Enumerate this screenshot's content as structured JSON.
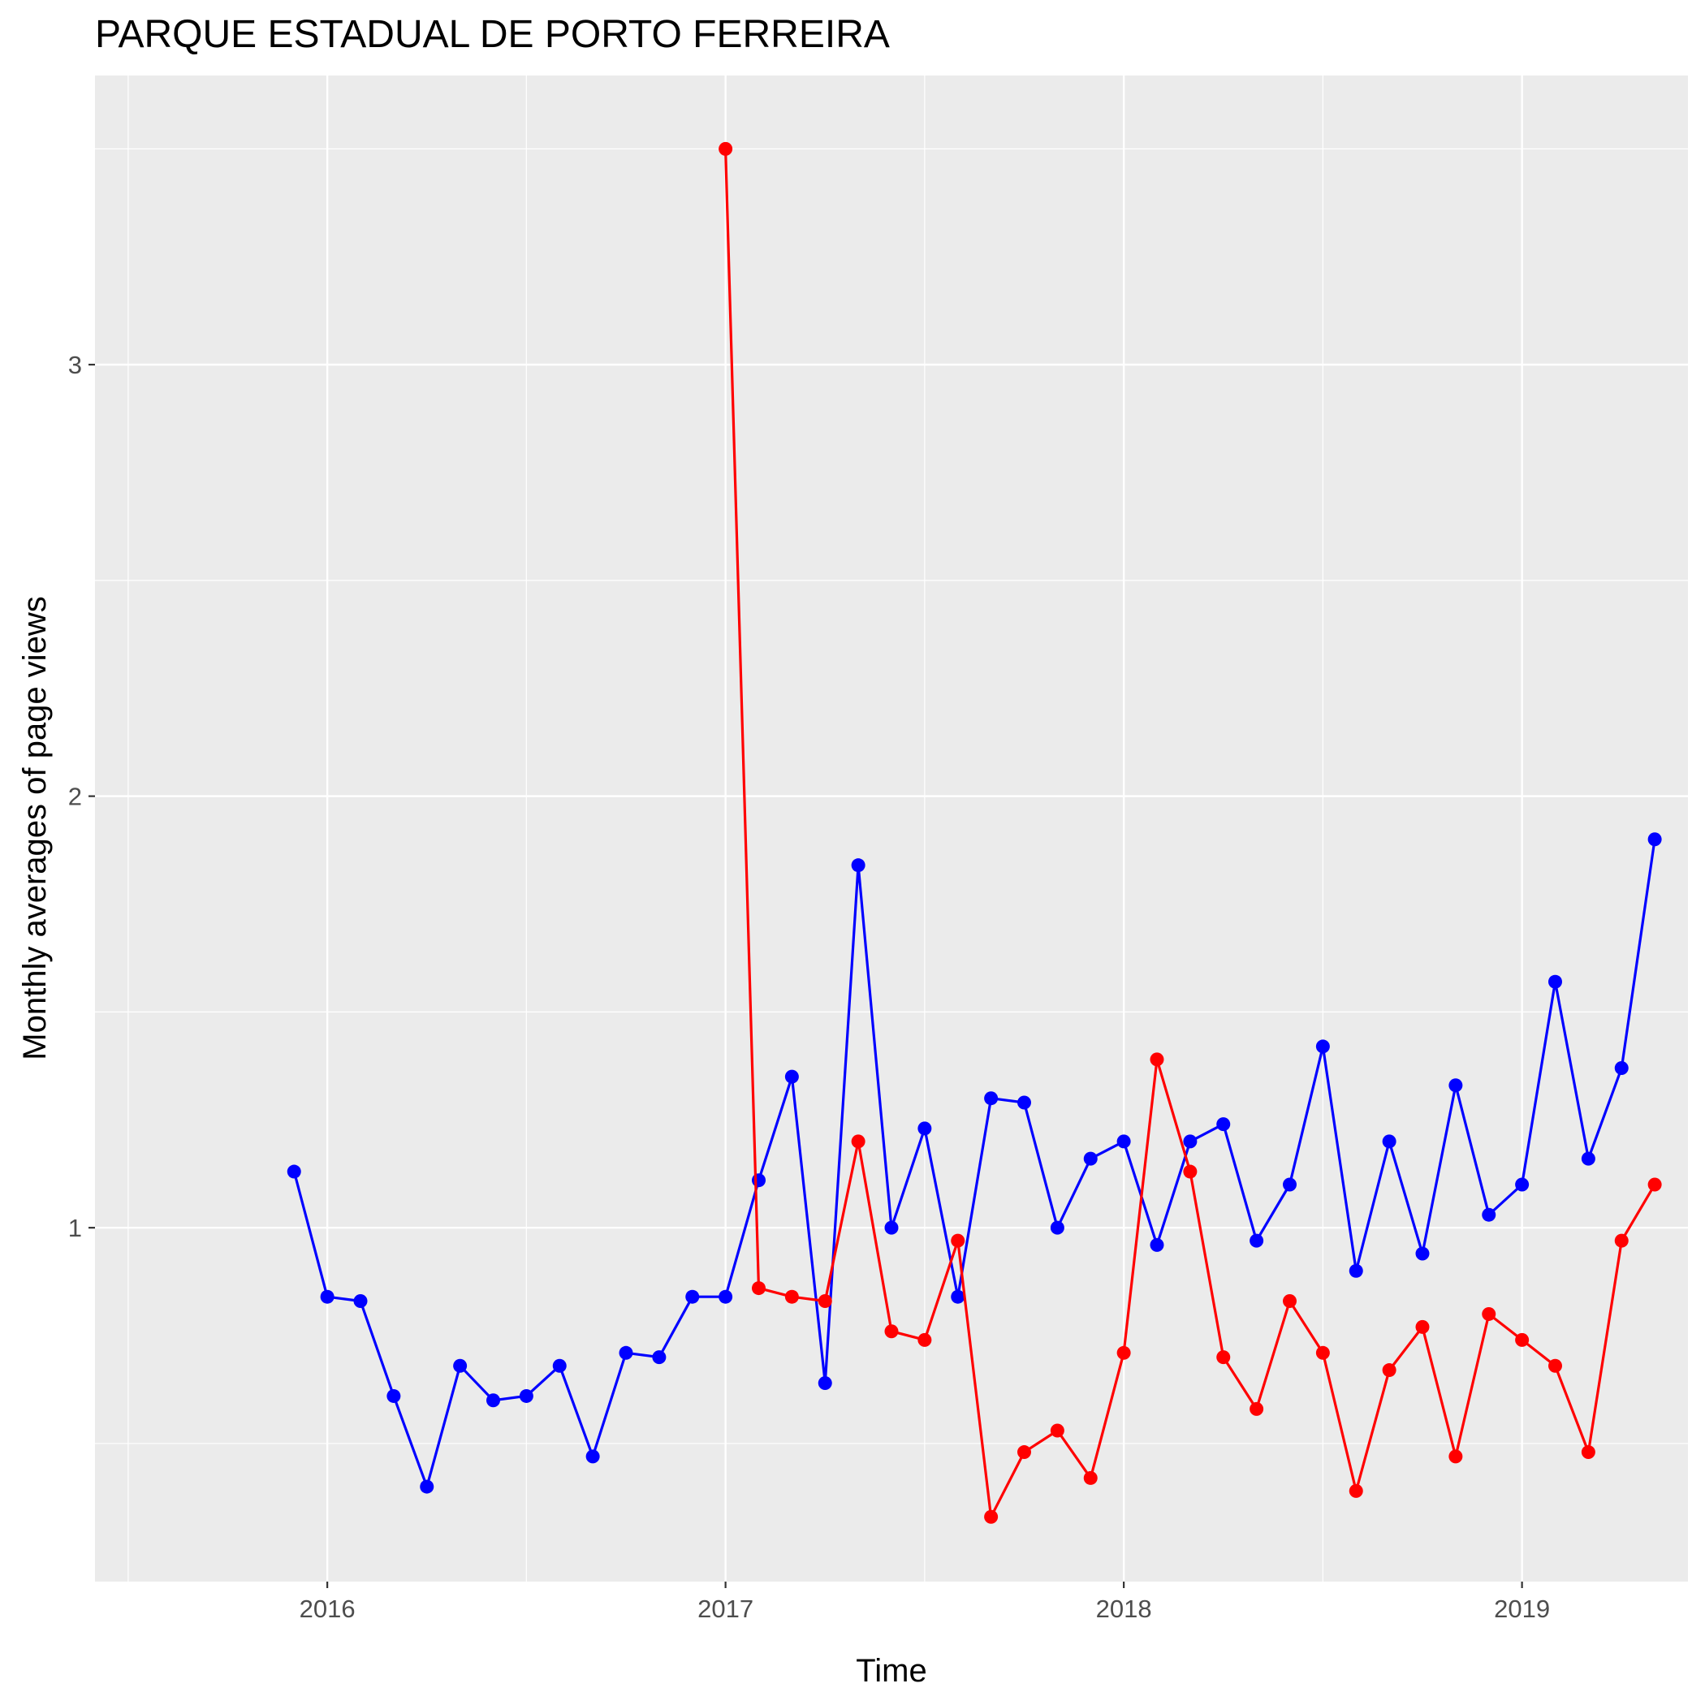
{
  "chart_data": {
    "type": "line",
    "title": "PARQUE ESTADUAL DE PORTO FERREIRA",
    "xlabel": "Time",
    "ylabel": "Monthly averages of page views",
    "x_ticks": [
      "2016",
      "2017",
      "2018",
      "2019"
    ],
    "y_ticks": [
      "1",
      "2",
      "3"
    ],
    "xlim": [
      "2015-06",
      "2019-06"
    ],
    "ylim": [
      0.18,
      3.67
    ],
    "grid": true,
    "series": [
      {
        "color": "#0000ff",
        "points": [
          [
            "2015-12",
            1.13
          ],
          [
            "2016-01",
            0.84
          ],
          [
            "2016-02",
            0.83
          ],
          [
            "2016-03",
            0.61
          ],
          [
            "2016-04",
            0.4
          ],
          [
            "2016-05",
            0.68
          ],
          [
            "2016-06",
            0.6
          ],
          [
            "2016-07",
            0.61
          ],
          [
            "2016-08",
            0.68
          ],
          [
            "2016-09",
            0.47
          ],
          [
            "2016-10",
            0.71
          ],
          [
            "2016-11",
            0.7
          ],
          [
            "2016-12",
            0.84
          ],
          [
            "2017-01",
            0.84
          ],
          [
            "2017-02",
            1.11
          ],
          [
            "2017-03",
            1.35
          ],
          [
            "2017-04",
            0.64
          ],
          [
            "2017-05",
            1.84
          ],
          [
            "2017-06",
            1.0
          ],
          [
            "2017-07",
            1.23
          ],
          [
            "2017-08",
            0.84
          ],
          [
            "2017-09",
            1.3
          ],
          [
            "2017-10",
            1.29
          ],
          [
            "2017-11",
            1.0
          ],
          [
            "2017-12",
            1.16
          ],
          [
            "2018-01",
            1.2
          ],
          [
            "2018-02",
            0.96
          ],
          [
            "2018-03",
            1.2
          ],
          [
            "2018-04",
            1.24
          ],
          [
            "2018-05",
            0.97
          ],
          [
            "2018-06",
            1.1
          ],
          [
            "2018-07",
            1.42
          ],
          [
            "2018-08",
            0.9
          ],
          [
            "2018-09",
            1.2
          ],
          [
            "2018-10",
            0.94
          ],
          [
            "2018-11",
            1.33
          ],
          [
            "2018-12",
            1.03
          ],
          [
            "2019-01",
            1.1
          ],
          [
            "2019-02",
            1.57
          ],
          [
            "2019-03",
            1.16
          ],
          [
            "2019-04",
            1.37
          ],
          [
            "2019-05",
            1.9
          ]
        ]
      },
      {
        "color": "#ff0000",
        "points": [
          [
            "2017-01",
            3.5
          ],
          [
            "2017-02",
            0.86
          ],
          [
            "2017-03",
            0.84
          ],
          [
            "2017-04",
            0.83
          ],
          [
            "2017-05",
            1.2
          ],
          [
            "2017-06",
            0.76
          ],
          [
            "2017-07",
            0.74
          ],
          [
            "2017-08",
            0.97
          ],
          [
            "2017-09",
            0.33
          ],
          [
            "2017-10",
            0.48
          ],
          [
            "2017-11",
            0.53
          ],
          [
            "2017-12",
            0.42
          ],
          [
            "2018-01",
            0.71
          ],
          [
            "2018-02",
            1.39
          ],
          [
            "2018-03",
            1.13
          ],
          [
            "2018-04",
            0.7
          ],
          [
            "2018-05",
            0.58
          ],
          [
            "2018-06",
            0.83
          ],
          [
            "2018-07",
            0.71
          ],
          [
            "2018-08",
            0.39
          ],
          [
            "2018-09",
            0.67
          ],
          [
            "2018-10",
            0.77
          ],
          [
            "2018-11",
            0.47
          ],
          [
            "2018-12",
            0.8
          ],
          [
            "2019-01",
            0.74
          ],
          [
            "2019-02",
            0.68
          ],
          [
            "2019-03",
            0.48
          ],
          [
            "2019-04",
            0.97
          ],
          [
            "2019-05",
            1.1
          ]
        ]
      }
    ]
  }
}
